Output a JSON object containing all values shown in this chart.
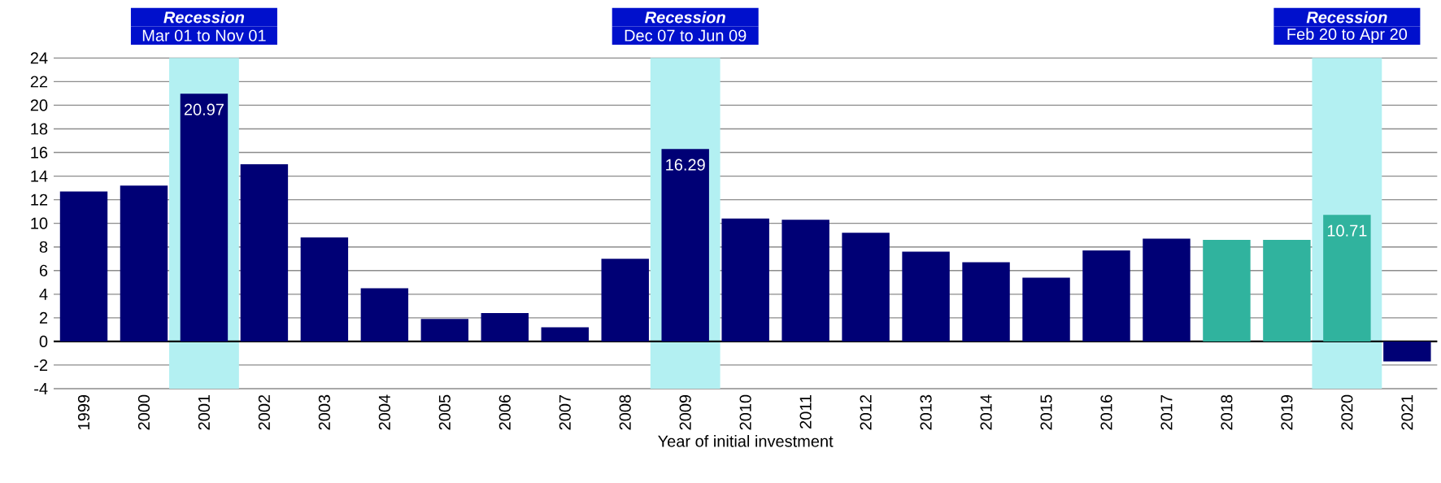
{
  "chart_data": {
    "type": "bar",
    "xlabel": "Year of initial investment",
    "categories": [
      "1999",
      "2000",
      "2001",
      "2002",
      "2003",
      "2004",
      "2005",
      "2006",
      "2007",
      "2008",
      "2009",
      "2010",
      "2011",
      "2012",
      "2013",
      "2014",
      "2015",
      "2016",
      "2017",
      "2018",
      "2019",
      "2020",
      "2021"
    ],
    "values": [
      12.7,
      13.2,
      20.97,
      15.0,
      8.8,
      4.5,
      1.9,
      2.4,
      1.2,
      7.0,
      16.29,
      10.4,
      10.3,
      9.2,
      7.6,
      6.7,
      5.4,
      7.7,
      8.7,
      8.6,
      8.6,
      10.71,
      -1.7
    ],
    "colors": [
      "#000075",
      "#000075",
      "#000075",
      "#000075",
      "#000075",
      "#000075",
      "#000075",
      "#000075",
      "#000075",
      "#000075",
      "#000075",
      "#000075",
      "#000075",
      "#000075",
      "#000075",
      "#000075",
      "#000075",
      "#000075",
      "#000075",
      "#30b39e",
      "#30b39e",
      "#30b39e",
      "#000075"
    ],
    "value_labels": [
      null,
      null,
      "20.97",
      null,
      null,
      null,
      null,
      null,
      null,
      null,
      "16.29",
      null,
      null,
      null,
      null,
      null,
      null,
      null,
      null,
      null,
      null,
      "10.71",
      null
    ],
    "ylim": [
      -4,
      24
    ],
    "yticks": [
      -4,
      -2,
      0,
      2,
      4,
      6,
      8,
      10,
      12,
      14,
      16,
      18,
      20,
      22,
      24
    ],
    "grid": "y",
    "bands": [
      {
        "axis": "x",
        "from": "2001",
        "to": "2001",
        "label": "Recession",
        "color": "#b3f0f2"
      },
      {
        "axis": "x",
        "from": "2009",
        "to": "2009",
        "label": "Recession",
        "color": "#b3f0f2"
      },
      {
        "axis": "x",
        "from": "2020",
        "to": "2020",
        "label": "Recession",
        "color": "#b3f0f2"
      }
    ],
    "annotations": [
      "Mar 01 to Nov 01",
      "Dec 07 to Jun 09",
      "Feb 20 to Apr 20"
    ]
  }
}
